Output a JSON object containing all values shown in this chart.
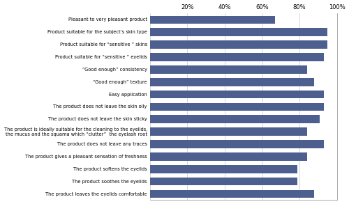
{
  "categories": [
    "Pleasant to very pleasant product",
    "Product suitable for the subject’s skin type",
    "Product suitable for “sensitive ” skins",
    "Product suitable for “sensitive ” eyelids",
    "“Good enough” consistency",
    "“Good enough” texture",
    "Easy application",
    "The product does not leave the skin oily",
    "The product does not leave the skin sticky",
    "The product is ideally suitable for the cleaning to the eyelids,\nthe mucus and the squama which “clutter”  the eyelash root",
    "The product does not leave any traces",
    "The product gives a pleasant sensation of freshness",
    "The product softens the eyelids",
    "The product soothes the eyelids",
    "The product leaves the eyelids comfortable"
  ],
  "values": [
    67,
    95,
    95,
    93,
    84,
    88,
    93,
    93,
    91,
    84,
    93,
    84,
    79,
    79,
    88
  ],
  "bar_color": "#4d5f8e",
  "xlim": [
    0,
    100
  ],
  "xticks": [
    0,
    20,
    40,
    60,
    80,
    100
  ],
  "xticklabels": [
    "",
    "20%",
    "40%",
    "60%",
    "80%",
    "100%"
  ],
  "grid_color": "#c8c8c8",
  "bar_height": 0.65,
  "figure_bg": "#ffffff",
  "axes_bg": "#ffffff",
  "label_fontsize": 4.8,
  "tick_fontsize": 6.0
}
